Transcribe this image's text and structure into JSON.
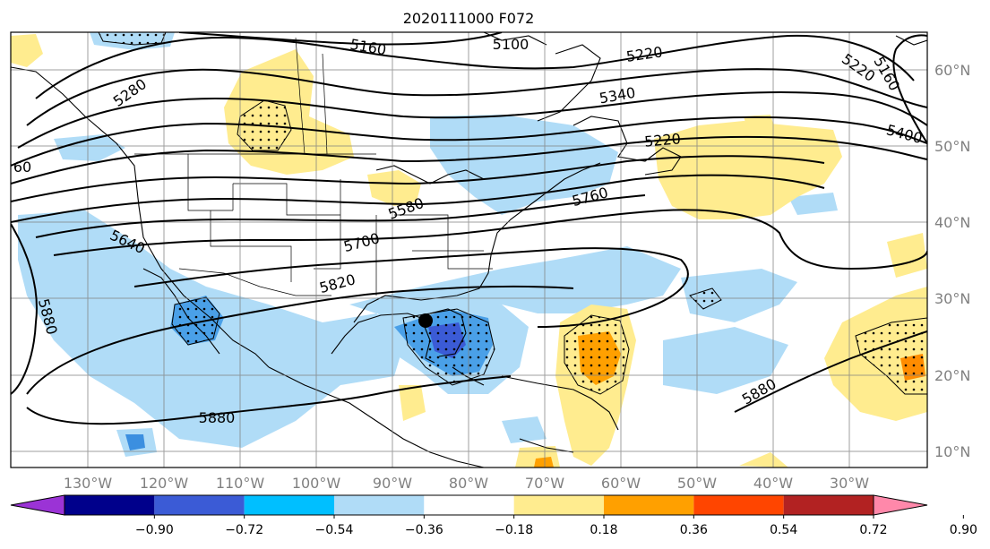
{
  "title": "2020111000 F072",
  "lon_labels": [
    "130°W",
    "120°W",
    "110°W",
    "100°W",
    "90°W",
    "80°W",
    "70°W",
    "60°W",
    "50°W",
    "40°W",
    "30°W"
  ],
  "lat_labels": [
    "60°N",
    "50°N",
    "40°N",
    "30°N",
    "20°N",
    "10°N"
  ],
  "contour_labels": [
    "5160",
    "5100",
    "5220",
    "5220",
    "5160",
    "5280",
    "5340",
    "5400",
    "5220",
    "60",
    "5580",
    "5760",
    "5640",
    "5700",
    "5820",
    "5880",
    "5880",
    "5880"
  ],
  "colorbar": {
    "tick_labels": [
      "−0.90",
      "−0.72",
      "−0.54",
      "−0.36",
      "−0.18",
      "0.18",
      "0.36",
      "0.54",
      "0.72",
      "0.90"
    ],
    "colors": [
      "#9b33d6",
      "#00008b",
      "#3b5bd6",
      "#00bfff",
      "#b0dcf7",
      "#ffffff",
      "#ffec8f",
      "#ffa000",
      "#ff4500",
      "#b22222",
      "#ff88aa"
    ]
  },
  "map_features": {
    "marker": "black-dot",
    "stipple": "dots",
    "colors": {
      "light_blue": "#b0dcf7",
      "mid_blue": "#4aa0e8",
      "dark_blue": "#3b5bd6",
      "light_yellow": "#ffec8f",
      "orange": "#ffa000",
      "dark_orange": "#ff8c00"
    }
  }
}
